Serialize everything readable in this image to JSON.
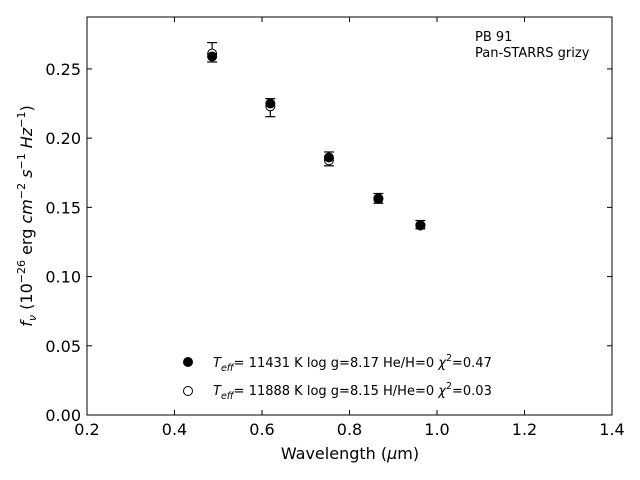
{
  "chart_data": {
    "type": "scatter",
    "xlabel_pre": "Wavelength (",
    "xlabel_mu": "μ",
    "xlabel_post": "m)",
    "ylabel": {
      "f": "f",
      "nu": "ν",
      "open": " (10",
      "exp1": "−26",
      "erg": " erg ",
      "cm": "cm",
      "exp2": "−2",
      "s": " s",
      "exp3": "−1",
      "hz": " Hz",
      "exp4": "−1",
      "close": ")"
    },
    "xlim": [
      0.2,
      1.4
    ],
    "ylim": [
      0.0,
      0.2875
    ],
    "xticks": [
      0.2,
      0.4,
      0.6,
      0.8,
      1.0,
      1.2,
      1.4
    ],
    "xtick_labels": [
      "0.2",
      "0.4",
      "0.6",
      "0.8",
      "1.0",
      "1.2",
      "1.4"
    ],
    "yticks": [
      0.0,
      0.05,
      0.1,
      0.15,
      0.2,
      0.25
    ],
    "ytick_labels": [
      "0.00",
      "0.05",
      "0.10",
      "0.15",
      "0.20",
      "0.25"
    ],
    "annotation": [
      "PB 91",
      "Pan-STARRS grizy"
    ],
    "observed": [
      {
        "x": 0.486,
        "y": 0.262,
        "err": 0.007
      },
      {
        "x": 0.619,
        "y": 0.222,
        "err": 0.0065
      },
      {
        "x": 0.753,
        "y": 0.185,
        "err": 0.005
      },
      {
        "x": 0.866,
        "y": 0.1565,
        "err": 0.0035
      },
      {
        "x": 0.962,
        "y": 0.1375,
        "err": 0.003
      }
    ],
    "series": [
      {
        "marker": "filled",
        "teff": "11431 K",
        "logg": "log g=8.17",
        "comp": "He/H=0",
        "chi2": "=0.47",
        "x": [
          0.486,
          0.619,
          0.753,
          0.866,
          0.962
        ],
        "y": [
          0.259,
          0.225,
          0.186,
          0.156,
          0.137
        ]
      },
      {
        "marker": "open",
        "teff": "11888 K",
        "logg": "log g=8.15",
        "comp": "H/He=0",
        "chi2": "=0.03",
        "x": [
          0.486,
          0.619,
          0.753,
          0.866,
          0.962
        ],
        "y": [
          0.261,
          0.223,
          0.184,
          0.1565,
          0.137
        ]
      }
    ],
    "legend_labels": {
      "T": "T",
      "eff": "eff",
      "chi": "χ",
      "two": "2"
    },
    "legend_placement": "bottom-left"
  }
}
